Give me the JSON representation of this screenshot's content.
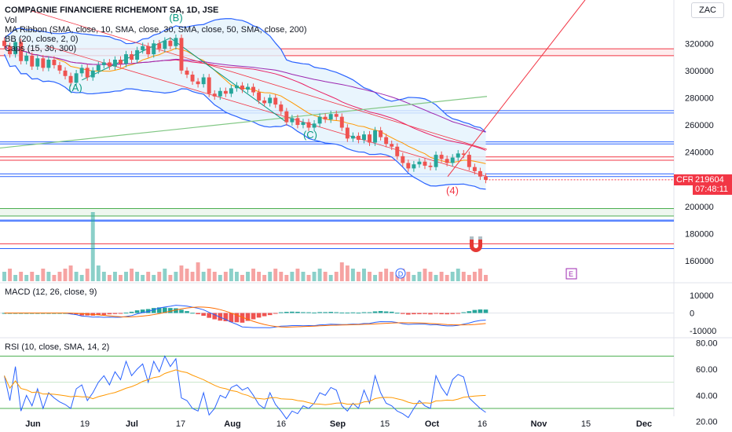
{
  "header": {
    "symbol_title": "COMPAGNIE FINANCIERE RICHEMONT SA, 1D, JSE",
    "currency": "ZAC",
    "indicators": [
      "Vol",
      "MA Ribbon (SMA, close, 10, SMA, close, 30, SMA, close, 50, SMA, close, 200)",
      "BB (20, close, 2, 0)",
      "Caps (15, 30, 300)"
    ]
  },
  "price_tag": {
    "ticker": "CFR",
    "price": "219604",
    "countdown": "07:48:11"
  },
  "macd_title": "MACD (12, 26, close, 9)",
  "rsi_title": "RSI (10, close, SMA, 14, 2)",
  "colors": {
    "up": "#26a69a",
    "down": "#ef5350",
    "bb": "#2962ff",
    "fill": "#e3f2fd",
    "red_line": "#f23645",
    "blue_line": "#2962ff",
    "green_line": "#4caf50",
    "ma10": "#ff9800",
    "ma30": "#e91e63",
    "ma50": "#9c27b0",
    "ma200": "#81c784"
  },
  "chart_data": [
    {
      "type": "candlestick",
      "title": "COMPAGNIE FINANCIERE RICHEMONT SA, 1D, JSE",
      "ylim": [
        145000,
        345000
      ],
      "y_ticks": [
        160000,
        180000,
        200000,
        220000,
        240000,
        260000,
        280000,
        300000,
        320000
      ],
      "x_ticks": [
        "Jun",
        "19",
        "Jul",
        "17",
        "Aug",
        "16",
        "Sep",
        "15",
        "Oct",
        "16",
        "Nov",
        "15",
        "Dec"
      ],
      "last_price": 219604,
      "wave_labels": [
        "(A)",
        "(B)",
        "(C)",
        "(4)"
      ],
      "horizontal_levels": [
        {
          "value": 316000,
          "color": "red"
        },
        {
          "value": 311000,
          "color": "red"
        },
        {
          "value": 270500,
          "color": "blue"
        },
        {
          "value": 268800,
          "color": "blue"
        },
        {
          "value": 247500,
          "color": "blue"
        },
        {
          "value": 246000,
          "color": "blue"
        },
        {
          "value": 236500,
          "color": "red"
        },
        {
          "value": 234000,
          "color": "red"
        },
        {
          "value": 224000,
          "color": "blue"
        },
        {
          "value": 222000,
          "color": "blue"
        },
        {
          "value": 198500,
          "color": "green"
        },
        {
          "value": 193000,
          "color": "green"
        },
        {
          "value": 190000,
          "color": "blue"
        },
        {
          "value": 189200,
          "color": "blue"
        },
        {
          "value": 172500,
          "color": "red"
        },
        {
          "value": 169000,
          "color": "blue"
        }
      ],
      "closes": [
        318000,
        312000,
        321000,
        307000,
        311000,
        303000,
        309000,
        302000,
        308000,
        304000,
        300000,
        296000,
        291000,
        298000,
        302000,
        295000,
        300000,
        304000,
        306000,
        303000,
        308000,
        305000,
        312000,
        308000,
        315000,
        318000,
        312000,
        320000,
        316000,
        322000,
        318000,
        324000,
        300000,
        297000,
        292000,
        290000,
        295000,
        283000,
        281000,
        285000,
        283000,
        287000,
        289000,
        286000,
        288000,
        284000,
        278000,
        276000,
        280000,
        275000,
        270000,
        262000,
        265000,
        260000,
        262000,
        258000,
        261000,
        266000,
        264000,
        268000,
        266000,
        258000,
        250000,
        252000,
        249000,
        253000,
        247000,
        256000,
        251000,
        246000,
        244000,
        237000,
        232000,
        228000,
        231000,
        233000,
        230000,
        229000,
        238000,
        235000,
        232000,
        236000,
        239000,
        238000,
        229000,
        226000,
        222000,
        219604
      ],
      "volumes": [
        3,
        4,
        2,
        3,
        2,
        3,
        2,
        4,
        3,
        2,
        3,
        4,
        5,
        3,
        2,
        4,
        22,
        5,
        3,
        2,
        3,
        2,
        3,
        4,
        3,
        2,
        3,
        2,
        3,
        4,
        2,
        3,
        5,
        4,
        3,
        6,
        3,
        4,
        3,
        2,
        3,
        4,
        3,
        2,
        3,
        4,
        3,
        2,
        3,
        4,
        3,
        2,
        3,
        4,
        3,
        2,
        3,
        4,
        3,
        2,
        3,
        6,
        5,
        4,
        3,
        4,
        3,
        2,
        3,
        4,
        3,
        2,
        4,
        3,
        2,
        3,
        4,
        3,
        2,
        3,
        2,
        3,
        4,
        3,
        2,
        3,
        4,
        2
      ]
    },
    {
      "type": "macd",
      "title": "MACD (12, 26, close, 9)",
      "ylim": [
        -14000,
        14000
      ],
      "y_ticks": [
        10000,
        0,
        -10000
      ]
    },
    {
      "type": "line",
      "title": "RSI (10, close, SMA, 14, 2)",
      "ylim": [
        18,
        84
      ],
      "y_ticks": [
        80.0,
        60.0,
        40.0,
        20.0
      ],
      "bands": [
        70,
        50,
        30
      ],
      "rsi": [
        55,
        36,
        62,
        28,
        40,
        32,
        45,
        30,
        42,
        38,
        35,
        33,
        30,
        45,
        48,
        36,
        42,
        50,
        55,
        48,
        58,
        52,
        66,
        55,
        60,
        64,
        50,
        66,
        58,
        70,
        62,
        68,
        38,
        36,
        30,
        28,
        42,
        25,
        30,
        40,
        38,
        46,
        48,
        44,
        46,
        40,
        33,
        30,
        42,
        33,
        28,
        22,
        28,
        26,
        32,
        30,
        34,
        42,
        40,
        46,
        44,
        32,
        28,
        34,
        30,
        44,
        34,
        55,
        42,
        34,
        32,
        28,
        26,
        23,
        30,
        36,
        32,
        30,
        55,
        46,
        40,
        52,
        56,
        54,
        38,
        34,
        30,
        27
      ]
    }
  ]
}
